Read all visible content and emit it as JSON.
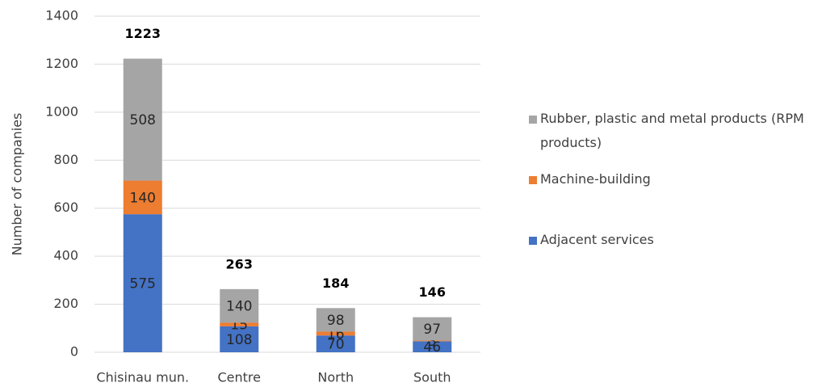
{
  "chart_data": {
    "type": "stacked_bar",
    "y_label": "Number of companies",
    "categories": [
      "Chisinau mun.",
      "Centre",
      "North",
      "South"
    ],
    "series": [
      {
        "name": "Adjacent services",
        "color": "#4472c4",
        "values": [
          575,
          108,
          70,
          46
        ]
      },
      {
        "name": "Machine-building",
        "color": "#ed7d31",
        "values": [
          140,
          15,
          16,
          3
        ]
      },
      {
        "name": "Rubber, plastic and metal products (RPM products)",
        "color": "#a5a5a5",
        "values": [
          508,
          140,
          98,
          97
        ]
      }
    ],
    "totals": [
      1223,
      263,
      184,
      146
    ],
    "ylim": [
      0,
      1400
    ],
    "yticks": [
      0,
      200,
      400,
      600,
      800,
      1000,
      1200,
      1400
    ],
    "grid": true,
    "legend": "right"
  }
}
